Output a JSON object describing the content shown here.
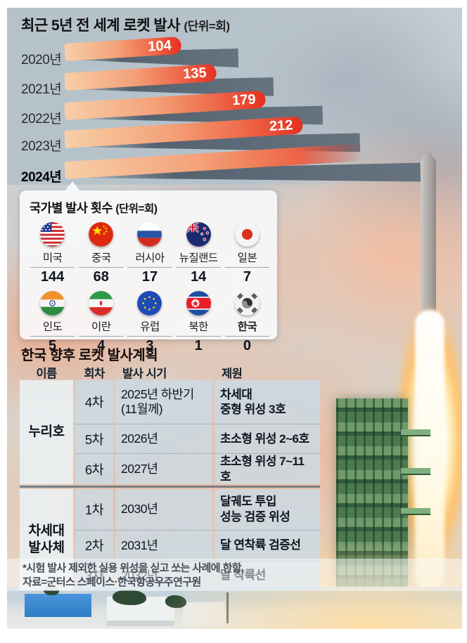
{
  "chart": {
    "title": "최근 5년 전 세계 로켓 발사",
    "unit": "(단위=회)",
    "bars": [
      {
        "year": "2020년",
        "value": "104"
      },
      {
        "year": "2021년",
        "value": "135"
      },
      {
        "year": "2022년",
        "value": "179"
      },
      {
        "year": "2023년",
        "value": "212"
      },
      {
        "year": "2024년",
        "value": ""
      }
    ]
  },
  "countries": {
    "title": "국가별 발사 횟수",
    "unit": "(단위=회)",
    "items": [
      {
        "name": "미국",
        "value": "144",
        "flag": "us-flag-icon"
      },
      {
        "name": "중국",
        "value": "68",
        "flag": "china-flag-icon"
      },
      {
        "name": "러시아",
        "value": "17",
        "flag": "russia-flag-icon"
      },
      {
        "name": "뉴질랜드",
        "value": "14",
        "flag": "new-zealand-flag-icon"
      },
      {
        "name": "일본",
        "value": "7",
        "flag": "japan-flag-icon"
      },
      {
        "name": "인도",
        "value": "5",
        "flag": "india-flag-icon"
      },
      {
        "name": "이란",
        "value": "4",
        "flag": "iran-flag-icon"
      },
      {
        "name": "유럽",
        "value": "3",
        "flag": "eu-flag-icon"
      },
      {
        "name": "북한",
        "value": "1",
        "flag": "north-korea-flag-icon"
      },
      {
        "name": "한국",
        "value": "0",
        "flag": "south-korea-flag-icon"
      }
    ]
  },
  "schedule": {
    "title": "한국 향후 로켓 발사계획",
    "headers": [
      "이름",
      "회차",
      "발사 시기",
      "제원"
    ],
    "groups": [
      {
        "name": "누리호",
        "rows": [
          {
            "round": "4차",
            "time": "2025년 하반기\n(11월께)",
            "payload": "차세대\n중형 위성 3호"
          },
          {
            "round": "5차",
            "time": "2026년",
            "payload": "초소형 위성 2~6호"
          },
          {
            "round": "6차",
            "time": "2027년",
            "payload": "초소형 위성 7~11호"
          }
        ]
      },
      {
        "name": "차세대\n발사체",
        "rows": [
          {
            "round": "1차",
            "time": "2030년",
            "payload": "달궤도 투입\n성능 검증 위성"
          },
          {
            "round": "2차",
            "time": "2031년",
            "payload": "달 연착륙 검증선"
          },
          {
            "round": "3차",
            "time": "2032년",
            "payload": "달 착륙선"
          }
        ]
      }
    ]
  },
  "footnotes": [
    "*시험 발사 제외한 실용 위성을 싣고 쏘는 사례에 한함.",
    "자료=군터스 스페이스·한국항공우주연구원"
  ],
  "colors": {
    "panel_bg": "#b6c2ca",
    "bar_gradient_start": "#f7cfa8",
    "bar_gradient_end": "#e62f1f",
    "bar_shadow": "#5f6d7b",
    "value_text": "#ffffff",
    "tower_green": "#4a7a50",
    "smoke_salmon": "#f4ba9c"
  },
  "chart_data": [
    {
      "type": "bar",
      "orientation": "horizontal",
      "title": "최근 5년 전 세계 로켓 발사",
      "unit_label": "(단위=회)",
      "categories": [
        "2020년",
        "2021년",
        "2022년",
        "2023년",
        "2024년"
      ],
      "values": [
        104,
        135,
        179,
        212,
        null
      ],
      "annotations": "2024 bar drawn longer than 2023 but shown without a numeric label; a callout from the 2024 bar points to the per-country breakdown box",
      "legend": "none",
      "grid": false
    },
    {
      "type": "bar",
      "orientation": "pictogram-grid",
      "title": "국가별 발사 횟수",
      "unit_label": "(단위=회)",
      "categories": [
        "미국",
        "중국",
        "러시아",
        "뉴질랜드",
        "일본",
        "인도",
        "이란",
        "유럽",
        "북한",
        "한국"
      ],
      "values": [
        144,
        68,
        17,
        14,
        7,
        5,
        4,
        3,
        1,
        0
      ]
    },
    {
      "type": "table",
      "title": "한국 향후 로켓 발사계획",
      "columns": [
        "이름",
        "회차",
        "발사 시기",
        "제원"
      ],
      "rows": [
        [
          "누리호",
          "4차",
          "2025년 하반기(11월께)",
          "차세대 중형 위성 3호"
        ],
        [
          "누리호",
          "5차",
          "2026년",
          "초소형 위성 2~6호"
        ],
        [
          "누리호",
          "6차",
          "2027년",
          "초소형 위성 7~11호"
        ],
        [
          "차세대 발사체",
          "1차",
          "2030년",
          "달궤도 투입 성능 검증 위성"
        ],
        [
          "차세대 발사체",
          "2차",
          "2031년",
          "달 연착륙 검증선"
        ],
        [
          "차세대 발사체",
          "3차",
          "2032년",
          "달 착륙선"
        ]
      ]
    }
  ]
}
